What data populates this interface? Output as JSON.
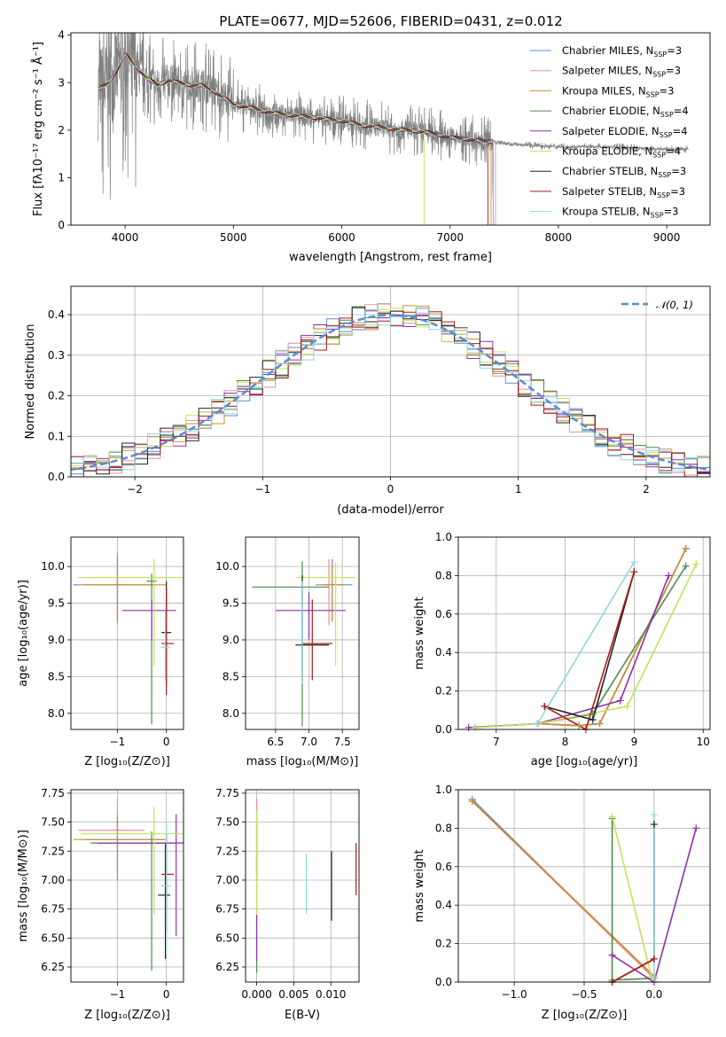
{
  "figure": {
    "title": "PLATE=0677, MJD=52606, FIBERID=0431, z=0.012"
  },
  "series_colors": [
    "#5b8bd6",
    "#e88fa0",
    "#c8902a",
    "#4e8a4e",
    "#8e2fa8",
    "#c5e05a",
    "#222222",
    "#b01818",
    "#8fd6dc"
  ],
  "chart_data": [
    {
      "type": "line",
      "name": "spectrum",
      "xlabel": "wavelength [Angstrom, rest frame]",
      "ylabel": "Flux [fλ10⁻¹⁷ erg cm⁻² s⁻¹ Å⁻¹]",
      "xlim": [
        3500,
        9400
      ],
      "ylim": [
        0,
        4.05
      ],
      "xticks": [
        "4000",
        "5000",
        "6000",
        "7000",
        "8000",
        "9000"
      ],
      "yticks": [
        "0",
        "1",
        "2",
        "3",
        "4"
      ],
      "legend_position": "top-right",
      "legend": [
        {
          "label": "Chabrier MILES, N",
          "sub": "SSP",
          "suffix": "=3"
        },
        {
          "label": "Salpeter MILES, N",
          "sub": "SSP",
          "suffix": "=3"
        },
        {
          "label": "Kroupa MILES, N",
          "sub": "SSP",
          "suffix": "=3"
        },
        {
          "label": "Chabrier ELODIE, N",
          "sub": "SSP",
          "suffix": "=4"
        },
        {
          "label": "Salpeter ELODIE, N",
          "sub": "SSP",
          "suffix": "=4"
        },
        {
          "label": "Kroupa ELODIE, N",
          "sub": "SSP",
          "suffix": "=4"
        },
        {
          "label": "Chabrier STELIB, N",
          "sub": "SSP",
          "suffix": "=3"
        },
        {
          "label": "Salpeter STELIB, N",
          "sub": "SSP",
          "suffix": "=3"
        },
        {
          "label": "Kroupa STELIB, N",
          "sub": "SSP",
          "suffix": "=3"
        }
      ],
      "data_color": "#808080",
      "data_range": [
        3750,
        9200
      ],
      "continuum": [
        [
          3750,
          2.85
        ],
        [
          3850,
          3.0
        ],
        [
          3950,
          3.35
        ],
        [
          4000,
          3.6
        ],
        [
          4100,
          3.35
        ],
        [
          4200,
          3.1
        ],
        [
          4300,
          2.95
        ],
        [
          4400,
          3.05
        ],
        [
          4500,
          3.0
        ],
        [
          4600,
          2.95
        ],
        [
          4700,
          2.95
        ],
        [
          4800,
          2.85
        ],
        [
          4900,
          2.7
        ],
        [
          5000,
          2.55
        ],
        [
          5200,
          2.45
        ],
        [
          5400,
          2.35
        ],
        [
          5600,
          2.3
        ],
        [
          5800,
          2.25
        ],
        [
          6000,
          2.2
        ],
        [
          6200,
          2.1
        ],
        [
          6400,
          2.05
        ],
        [
          6600,
          2.0
        ],
        [
          6800,
          1.95
        ],
        [
          7000,
          1.85
        ],
        [
          7200,
          1.8
        ],
        [
          7400,
          1.75
        ],
        [
          7600,
          1.7
        ],
        [
          8000,
          1.65
        ],
        [
          8500,
          1.65
        ],
        [
          9000,
          1.6
        ],
        [
          9200,
          1.6
        ]
      ],
      "model_end": [
        7400,
        7420,
        7380,
        7400,
        7400,
        6760,
        7400,
        7350,
        7400
      ]
    },
    {
      "type": "line",
      "name": "residual-distribution",
      "xlabel": "(data-model)/error",
      "ylabel": "Normed distribution",
      "xlim": [
        -2.5,
        2.5
      ],
      "ylim": [
        0,
        0.47
      ],
      "xticks": [
        "−2",
        "−1",
        "0",
        "1",
        "2"
      ],
      "yticks": [
        "0.0",
        "0.1",
        "0.2",
        "0.3",
        "0.4"
      ],
      "gaussian_label": "𝒩(0, 1)",
      "gaussian_color": "#5b8bd6",
      "legend_position": "top-right"
    },
    {
      "type": "scatter",
      "name": "age-vs-Z",
      "xlabel": "Z [log₁₀(Z/Z⊙)]",
      "ylabel": "age  [log₁₀(age/yr)]",
      "xlim": [
        -1.95,
        0.35
      ],
      "ylim": [
        7.78,
        10.4
      ],
      "xticks": [
        "−1",
        "0"
      ],
      "yticks": [
        "8.0",
        "8.5",
        "9.0",
        "9.5",
        "10.0"
      ],
      "points": [
        {
          "x": -1.0,
          "y": 9.75,
          "xerr": [
            0.9,
            0.7
          ],
          "yerr": [
            0.5,
            0.4
          ]
        },
        {
          "x": -1.0,
          "y": 9.75,
          "xerr": [
            0.8,
            0.8
          ],
          "yerr": [
            0.55,
            0.45
          ]
        },
        {
          "x": -1.0,
          "y": 9.75,
          "xerr": [
            0.7,
            1.0
          ],
          "yerr": [
            0.5,
            0.4
          ]
        },
        {
          "x": -0.3,
          "y": 9.8,
          "xerr": [
            0.1,
            0.1
          ],
          "yerr": [
            1.95,
            0.1
          ]
        },
        {
          "x": -0.3,
          "y": 9.4,
          "xerr": [
            0.6,
            0.5
          ],
          "yerr": [
            0.4,
            0.15
          ]
        },
        {
          "x": -0.25,
          "y": 9.85,
          "xerr": [
            1.55,
            0.6
          ],
          "yerr": [
            1.2,
            0.25
          ]
        },
        {
          "x": 0.0,
          "y": 9.1,
          "xerr": [
            0.1,
            0.1
          ],
          "yerr": [
            0.7,
            0.7
          ]
        },
        {
          "x": 0.0,
          "y": 8.95,
          "xerr": [
            0.1,
            0.15
          ],
          "yerr": [
            0.7,
            0.75
          ]
        },
        {
          "x": -0.02,
          "y": 8.9,
          "xerr": [
            0.1,
            0.1
          ],
          "yerr": [
            0.45,
            0.5
          ]
        }
      ]
    },
    {
      "type": "scatter",
      "name": "age-vs-mass",
      "xlabel": "mass [log₁₀(M/M⊙)]",
      "ylabel": "",
      "xlim": [
        6.05,
        7.75
      ],
      "ylim": [
        7.78,
        10.4
      ],
      "xticks": [
        "6.5",
        "7.0",
        "7.5"
      ],
      "yticks": [
        "8.0",
        "8.5",
        "9.0",
        "9.5",
        "10.0"
      ],
      "points": [
        {
          "x": 7.35,
          "y": 9.75,
          "xerr": [
            0.25,
            0.3
          ],
          "yerr": [
            0.5,
            0.35
          ]
        },
        {
          "x": 7.3,
          "y": 9.75,
          "xerr": [
            0.2,
            0.2
          ],
          "yerr": [
            0.55,
            0.35
          ]
        },
        {
          "x": 7.35,
          "y": 9.75,
          "xerr": [
            0.15,
            0.2
          ],
          "yerr": [
            0.5,
            0.3
          ]
        },
        {
          "x": 6.9,
          "y": 9.72,
          "xerr": [
            0.75,
            0.4
          ],
          "yerr": [
            1.9,
            0.35
          ]
        },
        {
          "x": 7.0,
          "y": 9.4,
          "xerr": [
            0.5,
            0.55
          ],
          "yerr": [
            0.4,
            0.25
          ]
        },
        {
          "x": 7.4,
          "y": 9.85,
          "xerr": [
            0.6,
            0.3
          ],
          "yerr": [
            1.2,
            0.2
          ]
        },
        {
          "x": 6.9,
          "y": 8.93,
          "xerr": [
            0.1,
            0.4
          ],
          "yerr": [
            0.5,
            0.95
          ]
        },
        {
          "x": 7.05,
          "y": 8.95,
          "xerr": [
            0.15,
            0.3
          ],
          "yerr": [
            0.5,
            0.6
          ]
        },
        {
          "x": 6.9,
          "y": 9.0,
          "xerr": [
            0.1,
            0.1
          ],
          "yerr": [
            0.6,
            0.8
          ]
        }
      ]
    },
    {
      "type": "line",
      "name": "mass-weight-vs-age",
      "xlabel": "age  [log₁₀(age/yr)]",
      "ylabel": "mass weight",
      "xlim": [
        6.45,
        10.1
      ],
      "ylim": [
        0,
        1.0
      ],
      "xticks": [
        "7",
        "8",
        "9",
        "10"
      ],
      "yticks": [
        "0.0",
        "0.2",
        "0.4",
        "0.6",
        "0.8",
        "1.0"
      ],
      "series": [
        {
          "points": [
            [
              7.6,
              0.03
            ],
            [
              8.2,
              0.02
            ],
            [
              8.5,
              0.03
            ],
            [
              9.75,
              0.94
            ]
          ]
        },
        {
          "points": [
            [
              7.6,
              0.03
            ],
            [
              8.2,
              0.02
            ],
            [
              8.5,
              0.03
            ],
            [
              9.75,
              0.94
            ]
          ]
        },
        {
          "points": [
            [
              7.6,
              0.03
            ],
            [
              8.2,
              0.02
            ],
            [
              8.5,
              0.03
            ],
            [
              9.75,
              0.94
            ]
          ]
        },
        {
          "points": [
            [
              6.7,
              0.01
            ],
            [
              7.6,
              0.03
            ],
            [
              8.4,
              0.08
            ],
            [
              9.75,
              0.85
            ]
          ]
        },
        {
          "points": [
            [
              6.6,
              0.01
            ],
            [
              7.6,
              0.03
            ],
            [
              8.8,
              0.15
            ],
            [
              9.5,
              0.8
            ]
          ]
        },
        {
          "points": [
            [
              6.7,
              0.01
            ],
            [
              7.6,
              0.03
            ],
            [
              8.9,
              0.12
            ],
            [
              9.9,
              0.86
            ]
          ]
        },
        {
          "points": [
            [
              7.7,
              0.12
            ],
            [
              8.4,
              0.05
            ],
            [
              9.0,
              0.82
            ]
          ]
        },
        {
          "points": [
            [
              7.7,
              0.12
            ],
            [
              8.3,
              0.0
            ],
            [
              9.0,
              0.82
            ]
          ]
        },
        {
          "points": [
            [
              7.6,
              0.03
            ],
            [
              9.0,
              0.87
            ]
          ]
        }
      ]
    },
    {
      "type": "scatter",
      "name": "mass-vs-Z",
      "xlabel": "Z [log₁₀(Z/Z⊙)]",
      "ylabel": "mass [log₁₀(M/M⊙)]",
      "xlim": [
        -1.95,
        0.35
      ],
      "ylim": [
        6.12,
        7.78
      ],
      "xticks": [
        "−1",
        "0"
      ],
      "yticks": [
        "6.25",
        "6.50",
        "6.75",
        "7.00",
        "7.25",
        "7.50",
        "7.75"
      ],
      "points": [
        {
          "x": -1.0,
          "y": 7.35,
          "xerr": [
            0.65,
            0.95
          ],
          "yerr": [
            0.35,
            0.25
          ]
        },
        {
          "x": -1.0,
          "y": 7.43,
          "xerr": [
            0.8,
            0.55
          ],
          "yerr": [
            0.4,
            0.27
          ]
        },
        {
          "x": -1.0,
          "y": 7.35,
          "xerr": [
            0.9,
            1.0
          ],
          "yerr": [
            0.3,
            0.2
          ]
        },
        {
          "x": -0.3,
          "y": 7.32,
          "xerr": [
            1.25,
            0.5
          ],
          "yerr": [
            1.1,
            0.1
          ]
        },
        {
          "x": 0.2,
          "y": 7.32,
          "xerr": [
            1.6,
            0.2
          ],
          "yerr": [
            0.8,
            0.25
          ]
        },
        {
          "x": -0.25,
          "y": 7.4,
          "xerr": [
            1.5,
            0.7
          ],
          "yerr": [
            0.7,
            0.23
          ]
        },
        {
          "x": -0.02,
          "y": 6.87,
          "xerr": [
            0.15,
            0.1
          ],
          "yerr": [
            0.55,
            0.45
          ]
        },
        {
          "x": 0.0,
          "y": 7.05,
          "xerr": [
            0.1,
            0.15
          ],
          "yerr": [
            0.5,
            0.35
          ]
        },
        {
          "x": 0.0,
          "y": 6.95,
          "xerr": [
            0.1,
            0.1
          ],
          "yerr": [
            0.6,
            0.55
          ]
        }
      ]
    },
    {
      "type": "scatter",
      "name": "mass-vs-ebv",
      "xlabel": "E(B-V)",
      "ylabel": "",
      "xlim": [
        -0.0015,
        0.0138
      ],
      "ylim": [
        6.12,
        7.78
      ],
      "xticks": [
        "0.000",
        "0.005",
        "0.010"
      ],
      "yticks": [
        "6.25",
        "6.50",
        "6.75",
        "7.00",
        "7.25",
        "7.50",
        "7.75"
      ],
      "points": [
        {
          "x": 0.0,
          "y": 7.4,
          "yerr": [
            0.4,
            0.3
          ]
        },
        {
          "x": 0.0,
          "y": 7.45,
          "yerr": [
            0.4,
            0.25
          ]
        },
        {
          "x": 0.0,
          "y": 7.35,
          "yerr": [
            0.3,
            0.2
          ]
        },
        {
          "x": 0.0,
          "y": 6.9,
          "yerr": [
            0.7,
            0.35
          ]
        },
        {
          "x": 0.0,
          "y": 6.5,
          "yerr": [
            0.2,
            0.2
          ]
        },
        {
          "x": 0.0,
          "y": 7.2,
          "yerr": [
            0.5,
            0.4
          ]
        },
        {
          "x": 0.0101,
          "y": 6.95,
          "yerr": [
            0.3,
            0.3
          ]
        },
        {
          "x": 0.0134,
          "y": 7.1,
          "yerr": [
            0.23,
            0.22
          ]
        },
        {
          "x": 0.0067,
          "y": 6.98,
          "yerr": [
            0.27,
            0.25
          ]
        }
      ]
    },
    {
      "type": "line",
      "name": "mass-weight-vs-Z",
      "xlabel": "Z [log₁₀(Z/Z⊙)]",
      "ylabel": "mass weight",
      "xlim": [
        -1.4,
        0.4
      ],
      "ylim": [
        0,
        1.0
      ],
      "xticks": [
        "−1.0",
        "−0.5",
        "0.0"
      ],
      "yticks": [
        "0.0",
        "0.2",
        "0.4",
        "0.6",
        "0.8",
        "1.0"
      ],
      "series": [
        {
          "points": [
            [
              -1.3,
              0.95
            ],
            [
              0.0,
              0.02
            ]
          ]
        },
        {
          "points": [
            [
              -1.3,
              0.94
            ],
            [
              0.0,
              0.02
            ]
          ]
        },
        {
          "points": [
            [
              -1.3,
              0.94
            ],
            [
              0.0,
              0.03
            ]
          ]
        },
        {
          "points": [
            [
              -0.3,
              0.85
            ],
            [
              -0.3,
              0.01
            ],
            [
              0.0,
              0.02
            ]
          ]
        },
        {
          "points": [
            [
              -0.3,
              0.14
            ],
            [
              0.0,
              0.0
            ],
            [
              0.3,
              0.8
            ]
          ]
        },
        {
          "points": [
            [
              -0.3,
              0.86
            ],
            [
              -0.02,
              0.03
            ],
            [
              0.0,
              0.02
            ]
          ]
        },
        {
          "points": [
            [
              -0.3,
              0.0
            ],
            [
              0.0,
              0.12
            ],
            [
              0.0,
              0.82
            ]
          ]
        },
        {
          "points": [
            [
              -0.3,
              0.0
            ],
            [
              0.0,
              0.12
            ]
          ]
        },
        {
          "points": [
            [
              0.0,
              0.87
            ],
            [
              0.0,
              0.03
            ]
          ]
        }
      ]
    }
  ]
}
